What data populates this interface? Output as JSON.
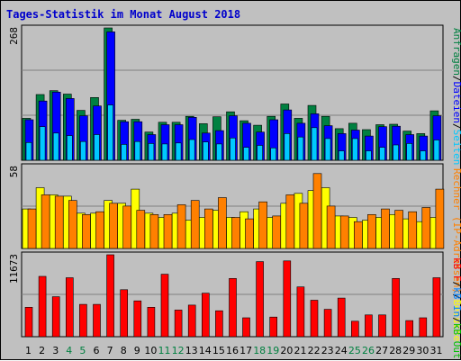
{
  "chart_data": {
    "type": "bar",
    "title": "Tages-Statistik im Monat August 2018",
    "categories": [
      "1",
      "2",
      "3",
      "4",
      "5",
      "6",
      "7",
      "8",
      "9",
      "10",
      "11",
      "12",
      "13",
      "14",
      "15",
      "16",
      "17",
      "18",
      "19",
      "20",
      "21",
      "22",
      "23",
      "24",
      "25",
      "26",
      "27",
      "28",
      "29",
      "30",
      "31"
    ],
    "weekend_days": [
      "4",
      "5",
      "11",
      "12",
      "18",
      "19",
      "25",
      "26"
    ],
    "panels": [
      {
        "id": "top",
        "ymax": 268,
        "ymax_label": "268",
        "right_label_parts": [
          {
            "text": "Anfragen",
            "color": "#008040"
          },
          {
            "text": "/",
            "color": "#000000"
          },
          {
            "text": "Dateien",
            "color": "#0000ff"
          },
          {
            "text": "/",
            "color": "#000000"
          },
          {
            "text": "Seiten",
            "color": "#00c8ff"
          }
        ],
        "series": [
          {
            "name": "Anfragen",
            "color": "#008040",
            "values": [
              85,
              133,
              141,
              134,
              101,
              127,
              268,
              81,
              83,
              57,
              77,
              77,
              89,
              74,
              88,
              98,
              80,
              71,
              89,
              114,
              85,
              111,
              89,
              64,
              75,
              62,
              72,
              73,
              59,
              54,
              100
            ]
          },
          {
            "name": "Dateien",
            "color": "#0000ff",
            "values": [
              82,
              120,
              138,
              125,
              90,
              110,
              260,
              78,
              78,
              52,
              72,
              72,
              87,
              55,
              60,
              90,
              75,
              57,
              82,
              102,
              75,
              94,
              70,
              54,
              61,
              49,
              68,
              69,
              52,
              49,
              90
            ]
          },
          {
            "name": "Seiten",
            "color": "#00c8ff",
            "values": [
              36,
              68,
              55,
              50,
              38,
              52,
              112,
              32,
              38,
              34,
              33,
              35,
              42,
              37,
              33,
              45,
              26,
              30,
              25,
              54,
              47,
              66,
              44,
              19,
              44,
              19,
              26,
              31,
              34,
              19,
              41
            ]
          }
        ]
      },
      {
        "id": "middle",
        "ymax": 58,
        "ymax_label": "58",
        "right_label_parts": [
          {
            "text": "Rechner (IP-Adressen)",
            "color": "#ff8000"
          },
          {
            "text": "/",
            "color": "#000000"
          },
          {
            "text": "Besuche",
            "color": "#ffff00"
          }
        ],
        "series": [
          {
            "name": "Besuche",
            "color": "#ffff00",
            "values": [
              28,
              43,
              38,
              37,
              25,
              25,
              34,
              32,
              42,
              25,
              22,
              25,
              20,
              22,
              27,
              22,
              26,
              28,
              22,
              32,
              39,
              41,
              43,
              23,
              22,
              20,
              22,
              24,
              21,
              19,
              22
            ]
          },
          {
            "name": "Rechner (IP-Adressen)",
            "color": "#ff8000",
            "values": [
              28,
              38,
              37,
              34,
              24,
              26,
              32,
              30,
              27,
              24,
              24,
              31,
              34,
              28,
              36,
              22,
              21,
              33,
              23,
              38,
              32,
              53,
              30,
              23,
              19,
              24,
              28,
              27,
              26,
              29,
              42
            ]
          }
        ]
      },
      {
        "id": "bottom",
        "ymax": 11673,
        "ymax_label": "11673",
        "right_label_parts": [
          {
            "text": "kB F",
            "color": "#ff0000"
          },
          {
            "text": "/",
            "color": "#000000"
          },
          {
            "text": "kB In",
            "color": "#0080ff"
          },
          {
            "text": "/",
            "color": "#000000"
          },
          {
            "text": "kB Out",
            "color": "#00c000"
          }
        ],
        "series": [
          {
            "name": "kB F",
            "color": "#ff0000",
            "values": [
              4200,
              8600,
              5700,
              8400,
              4600,
              4600,
              11673,
              6700,
              5100,
              4200,
              8900,
              3800,
              4500,
              6200,
              3700,
              8300,
              2700,
              10700,
              2800,
              10800,
              7100,
              5200,
              3900,
              5500,
              2200,
              3100,
              3100,
              8300,
              2300,
              2700,
              8400
            ]
          }
        ]
      }
    ]
  }
}
